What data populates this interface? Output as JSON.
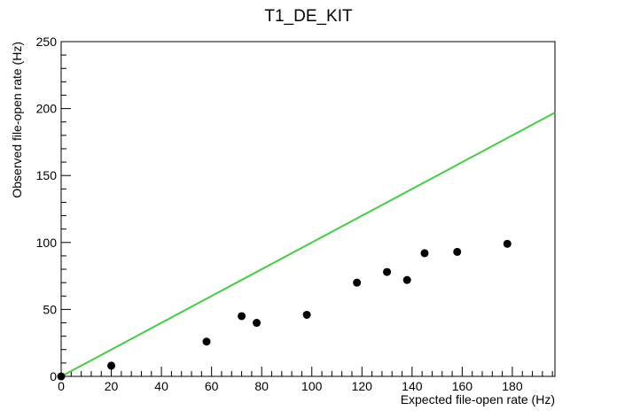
{
  "chart_data": {
    "type": "scatter",
    "title": "T1_DE_KIT",
    "xlabel": "Expected file-open rate (Hz)",
    "ylabel": "Observed file-open rate (Hz)",
    "xlim": [
      0,
      197
    ],
    "ylim": [
      0,
      250
    ],
    "x_major_ticks": [
      0,
      20,
      40,
      60,
      80,
      100,
      120,
      140,
      160,
      180
    ],
    "y_major_ticks": [
      0,
      50,
      100,
      150,
      200,
      250
    ],
    "x_tick_labels": [
      "0",
      "20",
      "40",
      "60",
      "80",
      "100",
      "120",
      "140",
      "160",
      "180"
    ],
    "y_tick_labels": [
      "0",
      "50",
      "100",
      "150",
      "200",
      "250"
    ],
    "grid": false,
    "legend": "none",
    "series": [
      {
        "kind": "points",
        "color": "#000000",
        "points": [
          {
            "x": 0,
            "y": 0
          },
          {
            "x": 20,
            "y": 8
          },
          {
            "x": 58,
            "y": 26
          },
          {
            "x": 72,
            "y": 45
          },
          {
            "x": 78,
            "y": 40
          },
          {
            "x": 98,
            "y": 46
          },
          {
            "x": 118,
            "y": 70
          },
          {
            "x": 130,
            "y": 78
          },
          {
            "x": 138,
            "y": 72
          },
          {
            "x": 145,
            "y": 92
          },
          {
            "x": 158,
            "y": 93
          },
          {
            "x": 178,
            "y": 99
          }
        ]
      },
      {
        "kind": "line",
        "color": "#44cc44",
        "points": [
          {
            "x": 0,
            "y": 0
          },
          {
            "x": 197,
            "y": 197
          }
        ]
      }
    ]
  }
}
